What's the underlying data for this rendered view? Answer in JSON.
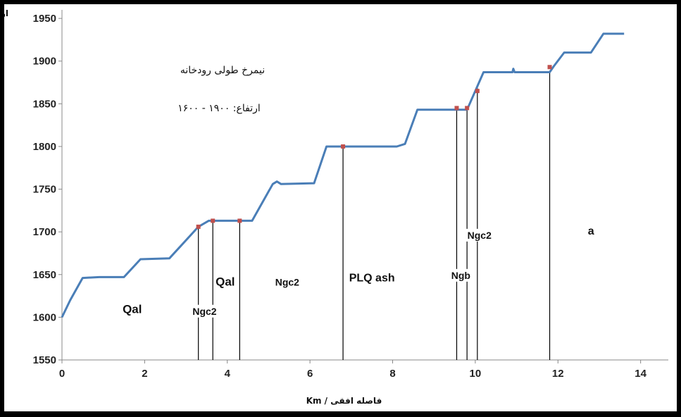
{
  "chart_data": {
    "type": "line",
    "title": "نیمرخ طولی رودخانه",
    "subtitle": "ارتفاع: ۱۹۰۰ - ۱۶۰۰",
    "xlabel": "فاصله افقی / Km",
    "ylabel": "ارتفاع /m",
    "xlim": [
      0,
      14.5
    ],
    "ylim": [
      1550,
      1960
    ],
    "x_ticks": [
      "0",
      "2",
      "4",
      "6",
      "8",
      "10",
      "12",
      "14"
    ],
    "y_ticks": [
      "1550",
      "1600",
      "1650",
      "1700",
      "1750",
      "1800",
      "1850",
      "1900",
      "1950"
    ],
    "grid": false,
    "legend": "none",
    "colors": {
      "line": "#4a7eb7",
      "marker": "#c0504d",
      "divider": "#000000"
    },
    "series": [
      {
        "points": [
          [
            0,
            1600
          ],
          [
            0.2,
            1620
          ],
          [
            0.5,
            1646
          ],
          [
            0.9,
            1647
          ],
          [
            1.5,
            1647
          ],
          [
            1.9,
            1668
          ],
          [
            2.6,
            1669
          ],
          [
            3.3,
            1706
          ],
          [
            3.55,
            1713
          ],
          [
            4.6,
            1713
          ],
          [
            5.1,
            1756
          ],
          [
            5.2,
            1759
          ],
          [
            5.3,
            1756
          ],
          [
            6.1,
            1757
          ],
          [
            6.4,
            1800
          ],
          [
            8.1,
            1800
          ],
          [
            8.3,
            1803
          ],
          [
            8.6,
            1843
          ],
          [
            9.8,
            1843
          ],
          [
            10.2,
            1887
          ],
          [
            10.9,
            1887
          ],
          [
            10.92,
            1891
          ],
          [
            10.95,
            1887
          ],
          [
            11.8,
            1887
          ],
          [
            11.9,
            1894
          ],
          [
            12.15,
            1910
          ],
          [
            12.8,
            1910
          ],
          [
            13.1,
            1932
          ],
          [
            13.6,
            1932
          ]
        ]
      }
    ],
    "markers": [
      [
        3.3,
        1706
      ],
      [
        3.65,
        1713
      ],
      [
        4.3,
        1713
      ],
      [
        6.8,
        1800
      ],
      [
        9.55,
        1845
      ],
      [
        9.8,
        1845
      ],
      [
        10.05,
        1865
      ],
      [
        11.8,
        1893
      ]
    ],
    "dividers": [
      3.3,
      3.65,
      4.3,
      6.8,
      9.55,
      9.8,
      10.05,
      11.8
    ],
    "units": [
      {
        "label": "Qal",
        "x": 1.7,
        "y": 1605,
        "size": "big"
      },
      {
        "label": "Ngc2",
        "x": 3.45,
        "y": 1603,
        "size": "small"
      },
      {
        "label": "Qal",
        "x": 3.95,
        "y": 1637,
        "size": "big"
      },
      {
        "label": "Ngc2",
        "x": 5.45,
        "y": 1637,
        "size": "small"
      },
      {
        "label": "PLQ ash",
        "x": 7.5,
        "y": 1642,
        "size": "normal"
      },
      {
        "label": "Ngb",
        "x": 9.65,
        "y": 1645,
        "size": "small"
      },
      {
        "label": "Ngc2",
        "x": 10.1,
        "y": 1692,
        "size": "small"
      },
      {
        "label": "a",
        "x": 12.8,
        "y": 1697,
        "size": "normal"
      }
    ]
  }
}
